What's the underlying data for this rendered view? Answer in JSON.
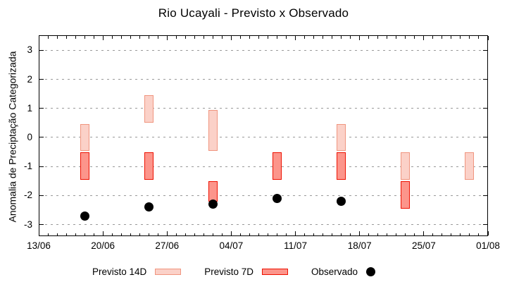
{
  "chart_data": {
    "type": "bar",
    "title": "Rio Ucayali - Previsto x Observado",
    "ylabel": "Anomalia de Preciptação Categorizada",
    "ylim": [
      -3.4,
      3.52
    ],
    "grid": true,
    "y_ticks": [
      3,
      2,
      1,
      0,
      -1,
      -2,
      -3
    ],
    "x_ticks": {
      "labels": [
        "13/06",
        "20/06",
        "27/06",
        "04/07",
        "11/07",
        "18/07",
        "25/07",
        "01/08"
      ],
      "days": [
        0,
        7,
        14,
        21,
        28,
        35,
        42,
        49
      ],
      "total_days": 49,
      "minor_every_days": 1
    },
    "colors": {
      "previsto14_fill": "#fbd1c8",
      "previsto14_border": "#f0957f",
      "previsto7_fill": "#fc958b",
      "previsto7_border": "#ee1100",
      "observado": "#000000",
      "grid": "#999999",
      "axis": "#000000"
    },
    "groups": [
      {
        "date": "18/06",
        "day": 5,
        "previsto14": [
          -0.45,
          0.45
        ],
        "previsto7": [
          -1.45,
          -0.5
        ],
        "observado": -2.7
      },
      {
        "date": "25/06",
        "day": 12,
        "previsto14": [
          0.5,
          1.45
        ],
        "previsto7": [
          -1.45,
          -0.5
        ],
        "observado": -2.4
      },
      {
        "date": "02/07",
        "day": 19,
        "previsto14": [
          -0.45,
          0.95
        ],
        "previsto7": [
          -2.2,
          -1.5
        ],
        "observado": -2.3
      },
      {
        "date": "09/07",
        "day": 26,
        "previsto14": null,
        "previsto7": [
          -1.45,
          -0.5
        ],
        "observado": -2.1
      },
      {
        "date": "16/07",
        "day": 33,
        "previsto14": [
          -0.45,
          0.45
        ],
        "previsto7": [
          -1.45,
          -0.5
        ],
        "observado": -2.2
      },
      {
        "date": "23/07",
        "day": 40,
        "previsto14": [
          -1.45,
          -0.5
        ],
        "previsto7": [
          -2.45,
          -1.5
        ],
        "observado": null
      },
      {
        "date": "30/07",
        "day": 47,
        "previsto14": [
          -1.45,
          -0.5
        ],
        "previsto7": null,
        "observado": null
      }
    ],
    "legend": {
      "position": "bottom",
      "items": [
        {
          "label": "Previsto 14D",
          "swatch": "bar-light"
        },
        {
          "label": "Previsto 7D",
          "swatch": "bar-dark"
        },
        {
          "label": "Observado",
          "swatch": "dot"
        }
      ]
    }
  }
}
